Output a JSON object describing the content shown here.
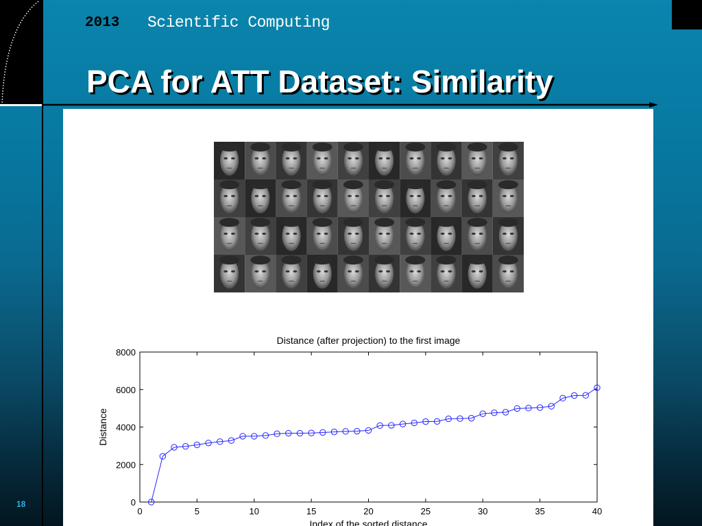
{
  "header": {
    "year": "2013",
    "course": "Scientific Computing",
    "title": "PCA for ATT Dataset: Similarity"
  },
  "slide_number": "18",
  "faces_grid": {
    "rows": 4,
    "cols": 10
  },
  "chart_data": {
    "type": "line",
    "title": "Distance (after projection) to the first image",
    "xlabel": "Index of the sorted distance",
    "ylabel": "Distance",
    "xlim": [
      0,
      40
    ],
    "ylim": [
      0,
      8000
    ],
    "xticks": [
      0,
      5,
      10,
      15,
      20,
      25,
      30,
      35,
      40
    ],
    "yticks": [
      0,
      2000,
      4000,
      6000,
      8000
    ],
    "grid": false,
    "marker": "circle",
    "color": "#2323ff",
    "x": [
      1,
      2,
      3,
      4,
      5,
      6,
      7,
      8,
      9,
      10,
      11,
      12,
      13,
      14,
      15,
      16,
      17,
      18,
      19,
      20,
      21,
      22,
      23,
      24,
      25,
      26,
      27,
      28,
      29,
      30,
      31,
      32,
      33,
      34,
      35,
      36,
      37,
      38,
      39,
      40
    ],
    "y": [
      0,
      2440,
      2920,
      2970,
      3050,
      3150,
      3220,
      3280,
      3510,
      3510,
      3550,
      3640,
      3670,
      3670,
      3680,
      3710,
      3740,
      3770,
      3780,
      3820,
      4080,
      4090,
      4160,
      4220,
      4290,
      4300,
      4440,
      4450,
      4470,
      4710,
      4760,
      4790,
      4990,
      5010,
      5040,
      5110,
      5540,
      5680,
      5690,
      6100
    ]
  }
}
